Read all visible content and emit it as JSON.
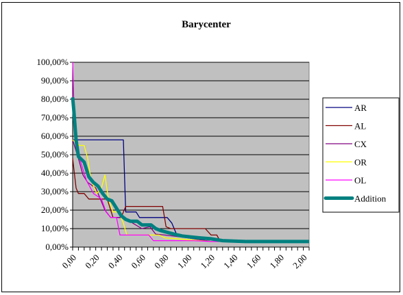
{
  "chart_data": {
    "type": "line",
    "title": "Barycenter",
    "xlabel": "",
    "ylabel": "",
    "xlim": [
      0,
      2.05
    ],
    "ylim": [
      0,
      1
    ],
    "x_ticks": [
      "0,00",
      "0,20",
      "0,40",
      "0,60",
      "0,80",
      "1,00",
      "1,20",
      "1,40",
      "1,60",
      "1,80",
      "2,00"
    ],
    "y_ticks": [
      "0,00%",
      "10,00%",
      "20,00%",
      "30,00%",
      "40,00%",
      "50,00%",
      "60,00%",
      "70,00%",
      "80,00%",
      "90,00%",
      "100,00%"
    ],
    "grid": true,
    "legend_position": "right",
    "series": [
      {
        "name": "AR",
        "color": "#000080",
        "width": 1.3,
        "points": [
          [
            0,
            0.58
          ],
          [
            0.41,
            0.58
          ],
          [
            0.44,
            0.58
          ],
          [
            0.46,
            0.19
          ],
          [
            0.55,
            0.19
          ],
          [
            0.58,
            0.16
          ],
          [
            0.75,
            0.16
          ],
          [
            0.82,
            0.16
          ],
          [
            0.86,
            0.13
          ],
          [
            0.9,
            0.07
          ],
          [
            1.0,
            0.05
          ],
          [
            1.2,
            0.03
          ],
          [
            2.05,
            0.03
          ]
        ]
      },
      {
        "name": "AL",
        "color": "#800000",
        "width": 1.3,
        "points": [
          [
            0,
            0.48
          ],
          [
            0.03,
            0.32
          ],
          [
            0.05,
            0.29
          ],
          [
            0.1,
            0.29
          ],
          [
            0.14,
            0.26
          ],
          [
            0.2,
            0.26
          ],
          [
            0.3,
            0.26
          ],
          [
            0.35,
            0.16
          ],
          [
            0.42,
            0.16
          ],
          [
            0.46,
            0.22
          ],
          [
            0.78,
            0.22
          ],
          [
            0.81,
            0.11
          ],
          [
            0.85,
            0.1
          ],
          [
            1.15,
            0.1
          ],
          [
            1.2,
            0.065
          ],
          [
            1.25,
            0.065
          ],
          [
            1.28,
            0.03
          ],
          [
            2.05,
            0.03
          ]
        ]
      },
      {
        "name": "CX",
        "color": "#800080",
        "width": 1.3,
        "points": [
          [
            0,
            0.58
          ],
          [
            0.05,
            0.48
          ],
          [
            0.09,
            0.39
          ],
          [
            0.13,
            0.35
          ],
          [
            0.2,
            0.32
          ],
          [
            0.28,
            0.2
          ],
          [
            0.33,
            0.16
          ],
          [
            0.45,
            0.16
          ],
          [
            0.52,
            0.13
          ],
          [
            0.6,
            0.1
          ],
          [
            0.67,
            0.11
          ],
          [
            0.72,
            0.07
          ],
          [
            0.8,
            0.065
          ],
          [
            1.0,
            0.05
          ],
          [
            1.2,
            0.03
          ],
          [
            2.05,
            0.03
          ]
        ]
      },
      {
        "name": "OR",
        "color": "#ffff00",
        "width": 1.3,
        "points": [
          [
            0,
            0.58
          ],
          [
            0.06,
            0.55
          ],
          [
            0.1,
            0.55
          ],
          [
            0.13,
            0.48
          ],
          [
            0.16,
            0.36
          ],
          [
            0.21,
            0.29
          ],
          [
            0.25,
            0.32
          ],
          [
            0.28,
            0.39
          ],
          [
            0.31,
            0.26
          ],
          [
            0.35,
            0.19
          ],
          [
            0.4,
            0.19
          ],
          [
            0.44,
            0.13
          ],
          [
            0.47,
            0.065
          ],
          [
            0.75,
            0.065
          ],
          [
            0.8,
            0.05
          ],
          [
            1.0,
            0.04
          ],
          [
            1.2,
            0.03
          ],
          [
            2.05,
            0.03
          ]
        ]
      },
      {
        "name": "OL",
        "color": "#ff00ff",
        "width": 1.3,
        "points": [
          [
            0,
            1.0
          ],
          [
            0.02,
            0.58
          ],
          [
            0.06,
            0.48
          ],
          [
            0.12,
            0.36
          ],
          [
            0.18,
            0.29
          ],
          [
            0.25,
            0.26
          ],
          [
            0.29,
            0.19
          ],
          [
            0.33,
            0.16
          ],
          [
            0.38,
            0.16
          ],
          [
            0.41,
            0.065
          ],
          [
            0.66,
            0.065
          ],
          [
            0.7,
            0.035
          ],
          [
            1.05,
            0.035
          ],
          [
            1.2,
            0.03
          ],
          [
            2.05,
            0.03
          ]
        ]
      },
      {
        "name": "Addition",
        "color": "#008080",
        "width": 5,
        "points": [
          [
            0,
            0.81
          ],
          [
            0.01,
            0.74
          ],
          [
            0.03,
            0.58
          ],
          [
            0.05,
            0.49
          ],
          [
            0.1,
            0.46
          ],
          [
            0.14,
            0.38
          ],
          [
            0.18,
            0.35
          ],
          [
            0.22,
            0.33
          ],
          [
            0.26,
            0.29
          ],
          [
            0.3,
            0.26
          ],
          [
            0.34,
            0.25
          ],
          [
            0.38,
            0.21
          ],
          [
            0.42,
            0.17
          ],
          [
            0.46,
            0.15
          ],
          [
            0.5,
            0.14
          ],
          [
            0.56,
            0.14
          ],
          [
            0.6,
            0.12
          ],
          [
            0.64,
            0.12
          ],
          [
            0.68,
            0.12
          ],
          [
            0.72,
            0.1
          ],
          [
            0.76,
            0.09
          ],
          [
            0.82,
            0.08
          ],
          [
            0.88,
            0.07
          ],
          [
            0.95,
            0.06
          ],
          [
            1.02,
            0.055
          ],
          [
            1.1,
            0.05
          ],
          [
            1.2,
            0.045
          ],
          [
            1.3,
            0.035
          ],
          [
            1.5,
            0.03
          ],
          [
            2.05,
            0.03
          ]
        ]
      }
    ]
  }
}
